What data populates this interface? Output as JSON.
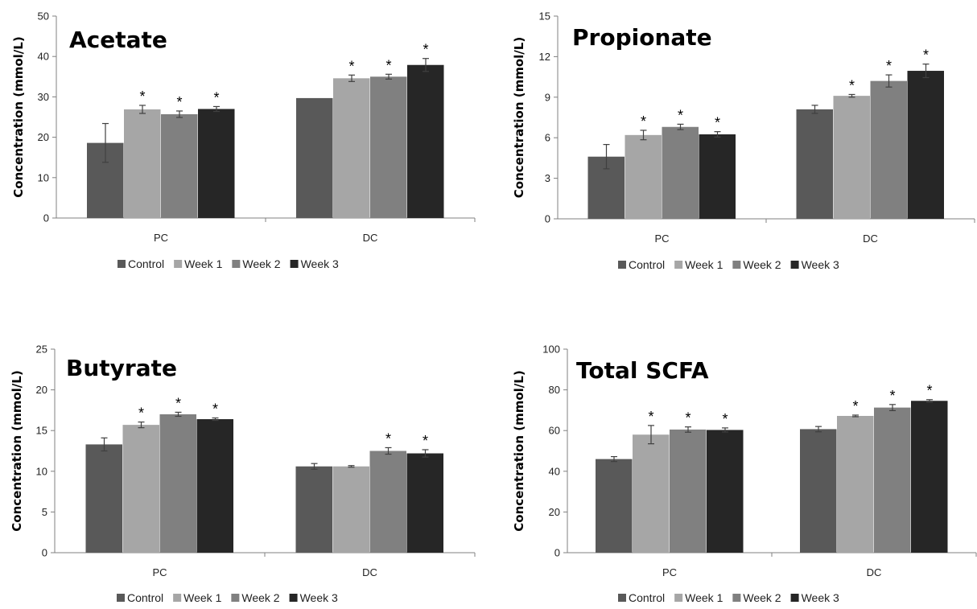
{
  "colors": {
    "Control": "#595959",
    "Week 1": "#a6a6a6",
    "Week 2": "#808080",
    "Week 3": "#262626"
  },
  "chart_data": [
    {
      "type": "bar",
      "title": "Acetate",
      "ylabel": "Concentration (mmol/L)",
      "ylim": [
        0,
        50
      ],
      "yticks": [
        0,
        10,
        20,
        30,
        40,
        50
      ],
      "categories": [
        "PC",
        "DC"
      ],
      "legend": "bottom",
      "series": [
        {
          "name": "Control",
          "values": [
            18.6,
            29.7
          ],
          "errors": [
            4.8,
            0
          ],
          "sig": [
            false,
            false
          ]
        },
        {
          "name": "Week 1",
          "values": [
            26.9,
            34.6
          ],
          "errors": [
            1.0,
            0.8
          ],
          "sig": [
            true,
            true
          ]
        },
        {
          "name": "Week 2",
          "values": [
            25.7,
            35.0
          ],
          "errors": [
            0.8,
            0.6
          ],
          "sig": [
            true,
            true
          ]
        },
        {
          "name": "Week 3",
          "values": [
            27.0,
            37.9
          ],
          "errors": [
            0.6,
            1.6
          ],
          "sig": [
            true,
            true
          ]
        }
      ]
    },
    {
      "type": "bar",
      "title": "Propionate",
      "ylabel": "Concentration (mmol/L)",
      "ylim": [
        0,
        15
      ],
      "yticks": [
        0,
        3,
        6,
        9,
        12,
        15
      ],
      "categories": [
        "PC",
        "DC"
      ],
      "legend": "bottom",
      "series": [
        {
          "name": "Control",
          "values": [
            4.6,
            8.1
          ],
          "errors": [
            0.9,
            0.3
          ],
          "sig": [
            false,
            false
          ]
        },
        {
          "name": "Week 1",
          "values": [
            6.2,
            9.1
          ],
          "errors": [
            0.35,
            0.1
          ],
          "sig": [
            true,
            true
          ]
        },
        {
          "name": "Week 2",
          "values": [
            6.8,
            10.2
          ],
          "errors": [
            0.2,
            0.45
          ],
          "sig": [
            true,
            true
          ]
        },
        {
          "name": "Week 3",
          "values": [
            6.25,
            10.95
          ],
          "errors": [
            0.2,
            0.5
          ],
          "sig": [
            true,
            true
          ]
        }
      ]
    },
    {
      "type": "bar",
      "title": "Butyrate",
      "ylabel": "Concentration (mmol/L)",
      "ylim": [
        0,
        25
      ],
      "yticks": [
        0,
        5,
        10,
        15,
        20,
        25
      ],
      "categories": [
        "PC",
        "DC"
      ],
      "legend": "bottom",
      "series": [
        {
          "name": "Control",
          "values": [
            13.3,
            10.6
          ],
          "errors": [
            0.8,
            0.35
          ],
          "sig": [
            false,
            false
          ]
        },
        {
          "name": "Week 1",
          "values": [
            15.7,
            10.6
          ],
          "errors": [
            0.35,
            0.1
          ],
          "sig": [
            true,
            false
          ]
        },
        {
          "name": "Week 2",
          "values": [
            17.0,
            12.5
          ],
          "errors": [
            0.25,
            0.4
          ],
          "sig": [
            true,
            true
          ]
        },
        {
          "name": "Week 3",
          "values": [
            16.4,
            12.2
          ],
          "errors": [
            0.15,
            0.45
          ],
          "sig": [
            true,
            true
          ]
        }
      ]
    },
    {
      "type": "bar",
      "title": "Total SCFA",
      "ylabel": "Concentration (mmol/L)",
      "ylim": [
        0,
        100
      ],
      "yticks": [
        0,
        20,
        40,
        60,
        80,
        100
      ],
      "categories": [
        "PC",
        "DC"
      ],
      "legend": "bottom",
      "series": [
        {
          "name": "Control",
          "values": [
            46.0,
            60.7
          ],
          "errors": [
            1.2,
            1.3
          ],
          "sig": [
            false,
            false
          ]
        },
        {
          "name": "Week 1",
          "values": [
            58.0,
            67.2
          ],
          "errors": [
            4.5,
            0.4
          ],
          "sig": [
            true,
            true
          ]
        },
        {
          "name": "Week 2",
          "values": [
            60.5,
            71.3
          ],
          "errors": [
            1.3,
            1.5
          ],
          "sig": [
            true,
            true
          ]
        },
        {
          "name": "Week 3",
          "values": [
            60.3,
            74.6
          ],
          "errors": [
            1.0,
            0.6
          ],
          "sig": [
            true,
            true
          ]
        }
      ]
    }
  ],
  "sig_marker": "*"
}
